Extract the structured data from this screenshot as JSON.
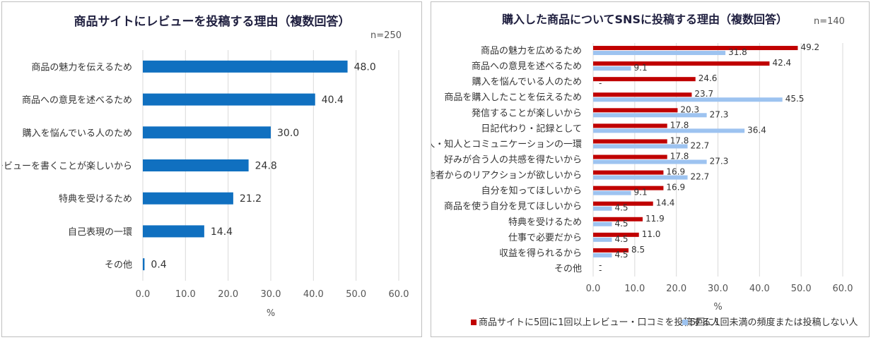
{
  "chart_data": [
    {
      "type": "bar",
      "orientation": "horizontal",
      "title": "商品サイトにレビューを投稿する理由（複数回答）",
      "subtitle": "n=250",
      "xlabel": "%",
      "categories": [
        "商品の魅力を伝えるため",
        "商品への意見を述べるため",
        "購入を悩んでいる人のため",
        "レビューを書くことが楽しいから",
        "特典を受けるため",
        "自己表現の一環",
        "その他"
      ],
      "values": [
        48.0,
        40.4,
        30.0,
        24.8,
        21.2,
        14.4,
        0.4
      ],
      "value_labels": [
        "48.0",
        "40.4",
        "30.0",
        "24.8",
        "21.2",
        "14.4",
        "0.4"
      ],
      "xlim": [
        0,
        60
      ],
      "ticks": [
        "0.0",
        "10.0",
        "20.0",
        "30.0",
        "40.0",
        "50.0",
        "60.0"
      ],
      "grid": true,
      "colors": [
        "#1070c0"
      ]
    },
    {
      "type": "bar",
      "orientation": "horizontal",
      "title": "購入した商品についてSNSに投稿する理由（複数回答）",
      "subtitle": "n=140",
      "xlabel": "%",
      "categories": [
        "商品の魅力を広めるため",
        "商品への意見を述べるため",
        "購入を悩んでいる人のため",
        "商品を購入したことを伝えるため",
        "発信することが楽しいから",
        "日記代わり・記録として",
        "友人・知人とコミュニケーションの一環",
        "好みが合う人の共感を得たいから",
        "他者からのリアクションが欲しいから",
        "自分を知ってほしいから",
        "商品を使う自分を見てほしいから",
        "特典を受けるため",
        "仕事で必要だから",
        "収益を得られるから",
        "その他"
      ],
      "series": [
        {
          "name": "商品サイトに5回に1回以上レビュー・口コミを投稿する人",
          "values": [
            49.2,
            42.4,
            24.6,
            23.7,
            20.3,
            17.8,
            17.8,
            17.8,
            16.9,
            16.9,
            14.4,
            11.9,
            11.0,
            8.5,
            0
          ],
          "value_labels": [
            "49.2",
            "42.4",
            "24.6",
            "23.7",
            "20.3",
            "17.8",
            "17.8",
            "17.8",
            "16.9",
            "16.9",
            "14.4",
            "11.9",
            "11.0",
            "8.5",
            "-"
          ],
          "color": "#c00000"
        },
        {
          "name": "5回に1回未満の頻度または投稿しない人",
          "values": [
            31.8,
            9.1,
            0,
            45.5,
            27.3,
            36.4,
            22.7,
            27.3,
            22.7,
            9.1,
            4.5,
            4.5,
            4.5,
            4.5,
            0
          ],
          "value_labels": [
            "31.8",
            "9.1",
            "-",
            "45.5",
            "27.3",
            "36.4",
            "22.7",
            "27.3",
            "22.7",
            "9.1",
            "4.5",
            "4.5",
            "4.5",
            "4.5",
            "-"
          ],
          "color": "#9dc3f0"
        }
      ],
      "xlim": [
        0,
        60
      ],
      "ticks": [
        "0.0",
        "10.0",
        "20.0",
        "30.0",
        "40.0",
        "50.0",
        "60.0"
      ],
      "grid": true,
      "legend": "bottom"
    }
  ]
}
